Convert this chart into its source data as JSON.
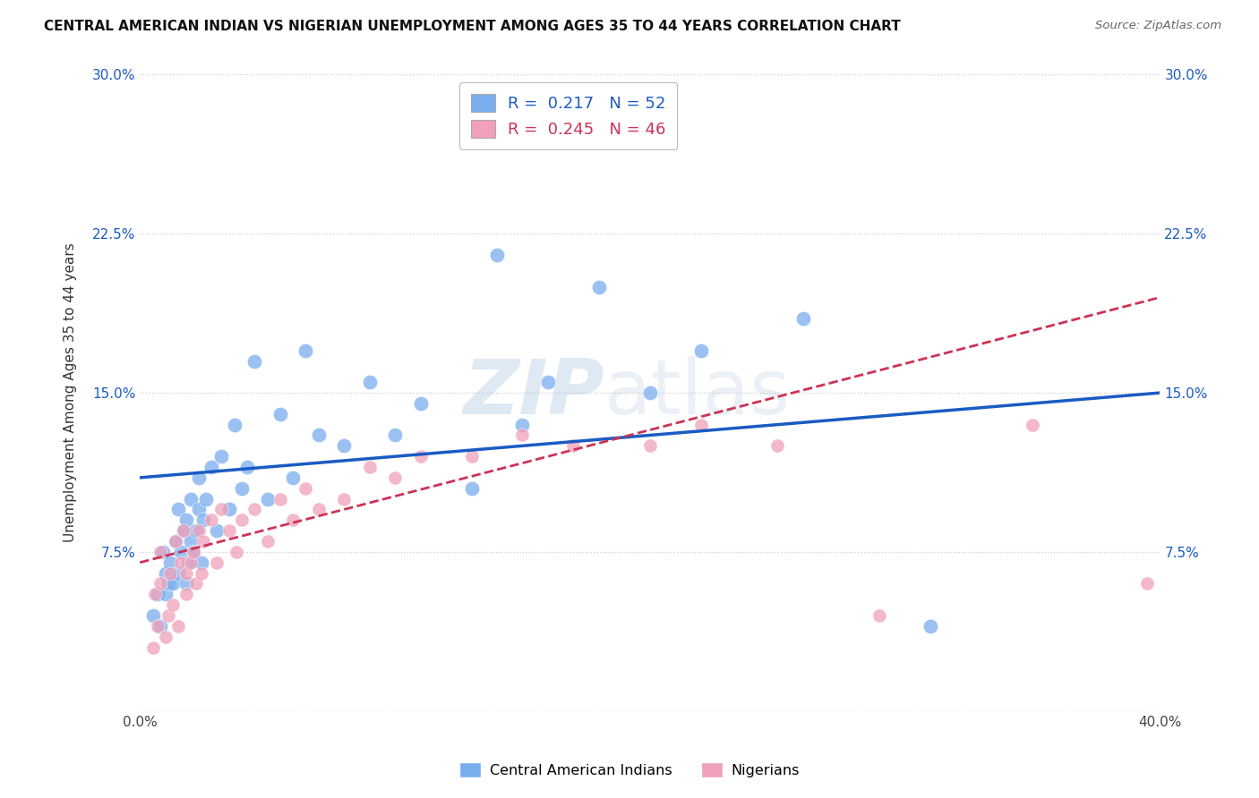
{
  "title": "CENTRAL AMERICAN INDIAN VS NIGERIAN UNEMPLOYMENT AMONG AGES 35 TO 44 YEARS CORRELATION CHART",
  "source": "Source: ZipAtlas.com",
  "ylabel": "Unemployment Among Ages 35 to 44 years",
  "xlim": [
    0.0,
    0.4
  ],
  "ylim": [
    0.0,
    0.3
  ],
  "xticks": [
    0.0,
    0.1,
    0.2,
    0.3,
    0.4
  ],
  "xtick_labels": [
    "0.0%",
    "",
    "",
    "",
    "40.0%"
  ],
  "yticks": [
    0.0,
    0.075,
    0.15,
    0.225,
    0.3
  ],
  "ytick_labels": [
    "",
    "7.5%",
    "15.0%",
    "22.5%",
    "30.0%"
  ],
  "blue_R": "0.217",
  "blue_N": "52",
  "pink_R": "0.245",
  "pink_N": "46",
  "blue_color": "#7aadee",
  "pink_color": "#f0a0b8",
  "blue_line_color": "#1a5bc4",
  "pink_line_color": "#cc3355",
  "watermark_left": "ZIP",
  "watermark_right": "atlas",
  "legend_blue_label": "Central American Indians",
  "legend_pink_label": "Nigerians",
  "background_color": "#ffffff",
  "grid_color": "#cccccc",
  "blue_line_x0": 0.0,
  "blue_line_y0": 0.11,
  "blue_line_x1": 0.4,
  "blue_line_y1": 0.15,
  "pink_line_x0": 0.0,
  "pink_line_y0": 0.07,
  "pink_line_x1": 0.4,
  "pink_line_y1": 0.195,
  "blue_x": [
    0.005,
    0.007,
    0.008,
    0.009,
    0.01,
    0.01,
    0.011,
    0.012,
    0.013,
    0.014,
    0.015,
    0.015,
    0.016,
    0.017,
    0.018,
    0.018,
    0.019,
    0.02,
    0.02,
    0.021,
    0.022,
    0.023,
    0.023,
    0.024,
    0.025,
    0.026,
    0.028,
    0.03,
    0.032,
    0.035,
    0.037,
    0.04,
    0.042,
    0.045,
    0.05,
    0.055,
    0.06,
    0.065,
    0.07,
    0.08,
    0.09,
    0.1,
    0.11,
    0.13,
    0.14,
    0.15,
    0.16,
    0.18,
    0.2,
    0.22,
    0.26,
    0.31
  ],
  "blue_y": [
    0.045,
    0.055,
    0.04,
    0.075,
    0.055,
    0.065,
    0.06,
    0.07,
    0.06,
    0.08,
    0.065,
    0.095,
    0.075,
    0.085,
    0.06,
    0.09,
    0.07,
    0.08,
    0.1,
    0.075,
    0.085,
    0.095,
    0.11,
    0.07,
    0.09,
    0.1,
    0.115,
    0.085,
    0.12,
    0.095,
    0.135,
    0.105,
    0.115,
    0.165,
    0.1,
    0.14,
    0.11,
    0.17,
    0.13,
    0.125,
    0.155,
    0.13,
    0.145,
    0.105,
    0.215,
    0.135,
    0.155,
    0.2,
    0.15,
    0.17,
    0.185,
    0.04
  ],
  "pink_x": [
    0.005,
    0.006,
    0.007,
    0.008,
    0.008,
    0.01,
    0.011,
    0.012,
    0.013,
    0.014,
    0.015,
    0.016,
    0.017,
    0.018,
    0.018,
    0.02,
    0.021,
    0.022,
    0.023,
    0.024,
    0.025,
    0.028,
    0.03,
    0.032,
    0.035,
    0.038,
    0.04,
    0.045,
    0.05,
    0.055,
    0.06,
    0.065,
    0.07,
    0.08,
    0.09,
    0.1,
    0.11,
    0.13,
    0.15,
    0.17,
    0.2,
    0.22,
    0.25,
    0.29,
    0.35,
    0.395
  ],
  "pink_y": [
    0.03,
    0.055,
    0.04,
    0.06,
    0.075,
    0.035,
    0.045,
    0.065,
    0.05,
    0.08,
    0.04,
    0.07,
    0.085,
    0.055,
    0.065,
    0.07,
    0.075,
    0.06,
    0.085,
    0.065,
    0.08,
    0.09,
    0.07,
    0.095,
    0.085,
    0.075,
    0.09,
    0.095,
    0.08,
    0.1,
    0.09,
    0.105,
    0.095,
    0.1,
    0.115,
    0.11,
    0.12,
    0.12,
    0.13,
    0.125,
    0.125,
    0.135,
    0.125,
    0.045,
    0.135,
    0.06
  ]
}
